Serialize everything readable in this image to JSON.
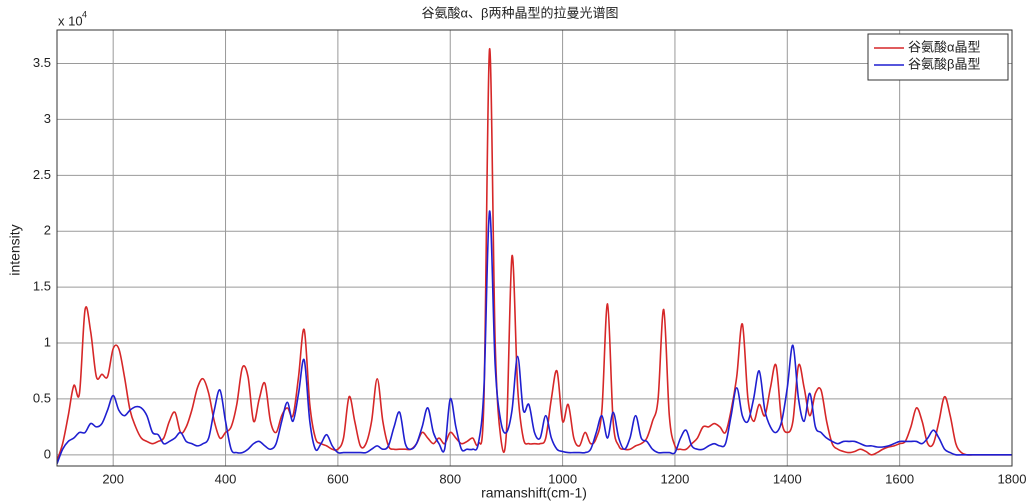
{
  "chart_data": {
    "type": "line",
    "title": "谷氨酸α、β两种晶型的拉曼光谱图",
    "xlabel": "ramanshift(cm-1)",
    "ylabel": "intensity",
    "yscale_label": "x 10",
    "yscale_exponent": "4",
    "x": [
      100,
      110,
      120,
      130,
      140,
      150,
      160,
      170,
      180,
      190,
      200,
      210,
      220,
      230,
      240,
      250,
      260,
      270,
      280,
      290,
      300,
      310,
      320,
      330,
      340,
      350,
      360,
      370,
      380,
      390,
      400,
      410,
      420,
      430,
      440,
      450,
      460,
      470,
      480,
      490,
      500,
      510,
      520,
      530,
      540,
      550,
      560,
      570,
      580,
      590,
      600,
      610,
      620,
      630,
      640,
      650,
      660,
      670,
      680,
      690,
      700,
      710,
      720,
      730,
      740,
      750,
      760,
      770,
      780,
      790,
      800,
      810,
      820,
      830,
      840,
      850,
      860,
      870,
      880,
      890,
      900,
      910,
      920,
      930,
      940,
      950,
      960,
      970,
      980,
      990,
      1000,
      1010,
      1020,
      1030,
      1040,
      1050,
      1060,
      1070,
      1080,
      1090,
      1100,
      1110,
      1120,
      1130,
      1140,
      1150,
      1160,
      1170,
      1180,
      1190,
      1200,
      1210,
      1220,
      1230,
      1240,
      1250,
      1260,
      1270,
      1280,
      1290,
      1300,
      1310,
      1320,
      1330,
      1340,
      1350,
      1360,
      1370,
      1380,
      1390,
      1400,
      1410,
      1420,
      1430,
      1440,
      1450,
      1460,
      1470,
      1480,
      1490,
      1500,
      1510,
      1520,
      1530,
      1540,
      1550,
      1560,
      1570,
      1580,
      1590,
      1600,
      1610,
      1620,
      1630,
      1640,
      1650,
      1660,
      1670,
      1680,
      1690,
      1700,
      1710,
      1720,
      1730,
      1740,
      1750,
      1760,
      1770,
      1780,
      1790,
      1800
    ],
    "series": [
      {
        "name": "谷氨酸α晶型",
        "color": "#d62728",
        "values": [
          -0.05,
          0.1,
          0.35,
          0.62,
          0.55,
          1.3,
          1.1,
          0.7,
          0.72,
          0.7,
          0.95,
          0.95,
          0.7,
          0.4,
          0.25,
          0.15,
          0.12,
          0.1,
          0.12,
          0.15,
          0.3,
          0.38,
          0.2,
          0.25,
          0.4,
          0.6,
          0.68,
          0.55,
          0.3,
          0.15,
          0.2,
          0.25,
          0.45,
          0.78,
          0.7,
          0.3,
          0.5,
          0.64,
          0.3,
          0.2,
          0.35,
          0.42,
          0.35,
          0.7,
          1.12,
          0.45,
          0.15,
          0.1,
          0.08,
          0.05,
          0.05,
          0.15,
          0.52,
          0.3,
          0.08,
          0.1,
          0.3,
          0.68,
          0.3,
          0.08,
          0.05,
          0.05,
          0.05,
          0.05,
          0.1,
          0.2,
          0.15,
          0.1,
          0.15,
          0.1,
          0.2,
          0.15,
          0.1,
          0.12,
          0.15,
          0.1,
          0.5,
          3.63,
          1.0,
          0.15,
          0.2,
          1.78,
          0.6,
          0.15,
          0.1,
          0.1,
          0.1,
          0.15,
          0.5,
          0.75,
          0.3,
          0.45,
          0.15,
          0.08,
          0.2,
          0.1,
          0.15,
          0.4,
          1.35,
          0.3,
          0.08,
          0.05,
          0.05,
          0.08,
          0.1,
          0.15,
          0.3,
          0.5,
          1.3,
          0.35,
          0.08,
          0.05,
          0.05,
          0.1,
          0.15,
          0.25,
          0.25,
          0.28,
          0.25,
          0.2,
          0.4,
          0.7,
          1.17,
          0.5,
          0.3,
          0.45,
          0.35,
          0.6,
          0.8,
          0.3,
          0.2,
          0.3,
          0.8,
          0.6,
          0.35,
          0.55,
          0.58,
          0.3,
          0.1,
          0.05,
          0.03,
          0.02,
          0.03,
          0.05,
          0.03,
          0,
          0.02,
          0.05,
          0.07,
          0.08,
          0.1,
          0.12,
          0.25,
          0.42,
          0.3,
          0.1,
          0.1,
          0.3,
          0.52,
          0.35,
          0.1,
          0.02,
          0,
          0,
          0,
          0,
          0,
          0,
          0,
          0,
          0
        ]
      },
      {
        "name": "谷氨酸β晶型",
        "color": "#1f1fd0",
        "values": [
          -0.08,
          0.05,
          0.12,
          0.15,
          0.2,
          0.2,
          0.28,
          0.25,
          0.28,
          0.4,
          0.53,
          0.4,
          0.35,
          0.4,
          0.43,
          0.42,
          0.35,
          0.2,
          0.18,
          0.1,
          0.12,
          0.15,
          0.2,
          0.12,
          0.1,
          0.08,
          0.1,
          0.15,
          0.4,
          0.58,
          0.3,
          0.05,
          0.02,
          0.02,
          0.05,
          0.1,
          0.12,
          0.08,
          0.05,
          0.1,
          0.3,
          0.47,
          0.3,
          0.55,
          0.85,
          0.3,
          0.05,
          0.1,
          0.18,
          0.08,
          0.02,
          0.02,
          0.02,
          0.02,
          0.02,
          0.02,
          0.05,
          0.08,
          0.05,
          0.08,
          0.25,
          0.38,
          0.1,
          0.05,
          0.1,
          0.25,
          0.42,
          0.2,
          0.1,
          0.05,
          0.5,
          0.25,
          0.05,
          0.05,
          0.05,
          0.1,
          0.6,
          2.18,
          0.8,
          0.3,
          0.2,
          0.4,
          0.88,
          0.4,
          0.45,
          0.2,
          0.15,
          0.35,
          0.15,
          0.05,
          0.03,
          0.02,
          0.02,
          0.02,
          0.02,
          0.05,
          0.2,
          0.35,
          0.15,
          0.38,
          0.15,
          0.05,
          0.15,
          0.35,
          0.15,
          0.12,
          0.05,
          0.02,
          0.02,
          0.02,
          0.02,
          0.15,
          0.22,
          0.08,
          0.05,
          0.05,
          0.08,
          0.1,
          0.08,
          0.1,
          0.35,
          0.6,
          0.35,
          0.3,
          0.5,
          0.75,
          0.4,
          0.25,
          0.2,
          0.3,
          0.6,
          0.98,
          0.5,
          0.3,
          0.55,
          0.25,
          0.2,
          0.15,
          0.12,
          0.1,
          0.12,
          0.12,
          0.12,
          0.1,
          0.08,
          0.08,
          0.07,
          0.07,
          0.08,
          0.1,
          0.12,
          0.12,
          0.12,
          0.12,
          0.1,
          0.15,
          0.22,
          0.15,
          0.05,
          0.02,
          0,
          0,
          0,
          0,
          0,
          0,
          0,
          0,
          0,
          0,
          0
        ]
      }
    ],
    "xlim": [
      100,
      1800
    ],
    "ylim": [
      -0.1,
      3.8
    ],
    "xticks": [
      200,
      400,
      600,
      800,
      1000,
      1200,
      1400,
      1600,
      1800
    ],
    "yticks": [
      0,
      0.5,
      1,
      1.5,
      2,
      2.5,
      3,
      3.5
    ],
    "grid": true,
    "legend": "upper right"
  }
}
